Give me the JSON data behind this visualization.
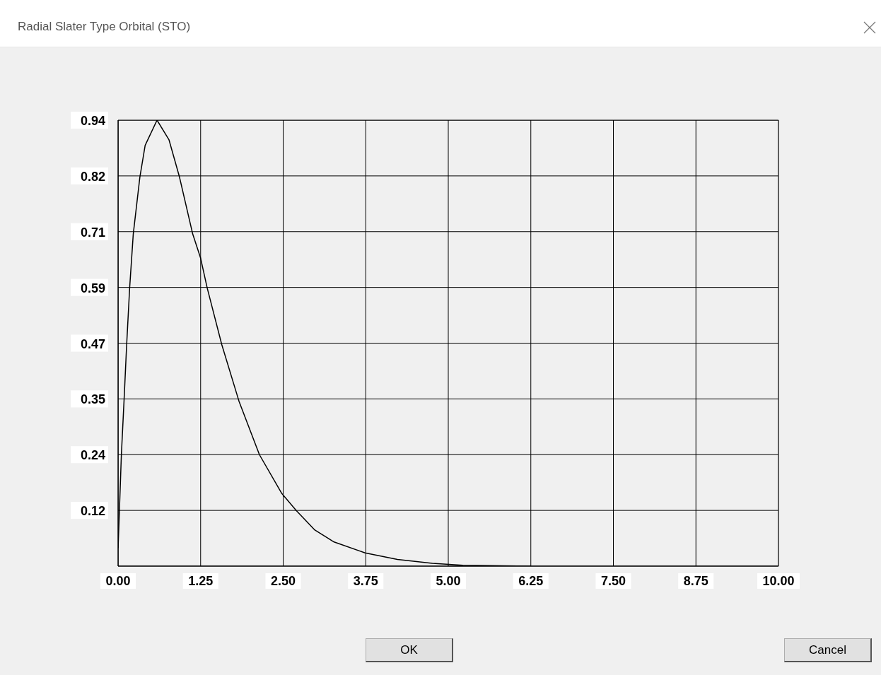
{
  "chart_data": {
    "type": "line",
    "title": "Radial Slater Type Orbital (STO)",
    "annotations": [
      "OK",
      "Cancel"
    ],
    "series": [
      {
        "color": "#000000",
        "x": [
          0,
          0.02,
          0.05,
          0.09,
          0.13,
          0.175,
          0.23,
          0.33,
          0.41,
          0.59,
          0.77,
          0.93,
          1.13,
          1.25,
          1.35,
          1.57,
          1.83,
          2.14,
          2.48,
          2.7,
          2.98,
          3.27,
          3.74,
          4.23,
          4.76,
          5.22,
          6.25
        ],
        "values": [
          0.038,
          0.116,
          0.235,
          0.348,
          0.467,
          0.586,
          0.7,
          0.82,
          0.887,
          0.94,
          0.899,
          0.82,
          0.7,
          0.649,
          0.586,
          0.467,
          0.348,
          0.235,
          0.153,
          0.117,
          0.076,
          0.051,
          0.028,
          0.014,
          0.006,
          0.002,
          0
        ]
      }
    ],
    "xlim": [
      0,
      10
    ],
    "xticks": [
      {
        "value": 0,
        "label": "0.00"
      },
      {
        "value": 1.25,
        "label": "1.25"
      },
      {
        "value": 2.5,
        "label": "2.50"
      },
      {
        "value": 3.75,
        "label": "3.75"
      },
      {
        "value": 5,
        "label": "5.00"
      },
      {
        "value": 6.25,
        "label": "6.25"
      },
      {
        "value": 7.5,
        "label": "7.50"
      },
      {
        "value": 8.75,
        "label": "8.75"
      },
      {
        "value": 10,
        "label": "10.00"
      }
    ],
    "ylim": [
      0,
      0.94
    ],
    "yticks": [
      {
        "value": 0,
        "label": null
      },
      {
        "value": 0.1175,
        "label": "0.12"
      },
      {
        "value": 0.235,
        "label": "0.24"
      },
      {
        "value": 0.3525,
        "label": "0.35"
      },
      {
        "value": 0.47,
        "label": "0.47"
      },
      {
        "value": 0.5875,
        "label": "0.59"
      },
      {
        "value": 0.705,
        "label": "0.71"
      },
      {
        "value": 0.8225,
        "label": "0.82"
      },
      {
        "value": 0.94,
        "label": "0.94"
      }
    ],
    "grid": true,
    "marker": "none",
    "line_style": "solid"
  }
}
